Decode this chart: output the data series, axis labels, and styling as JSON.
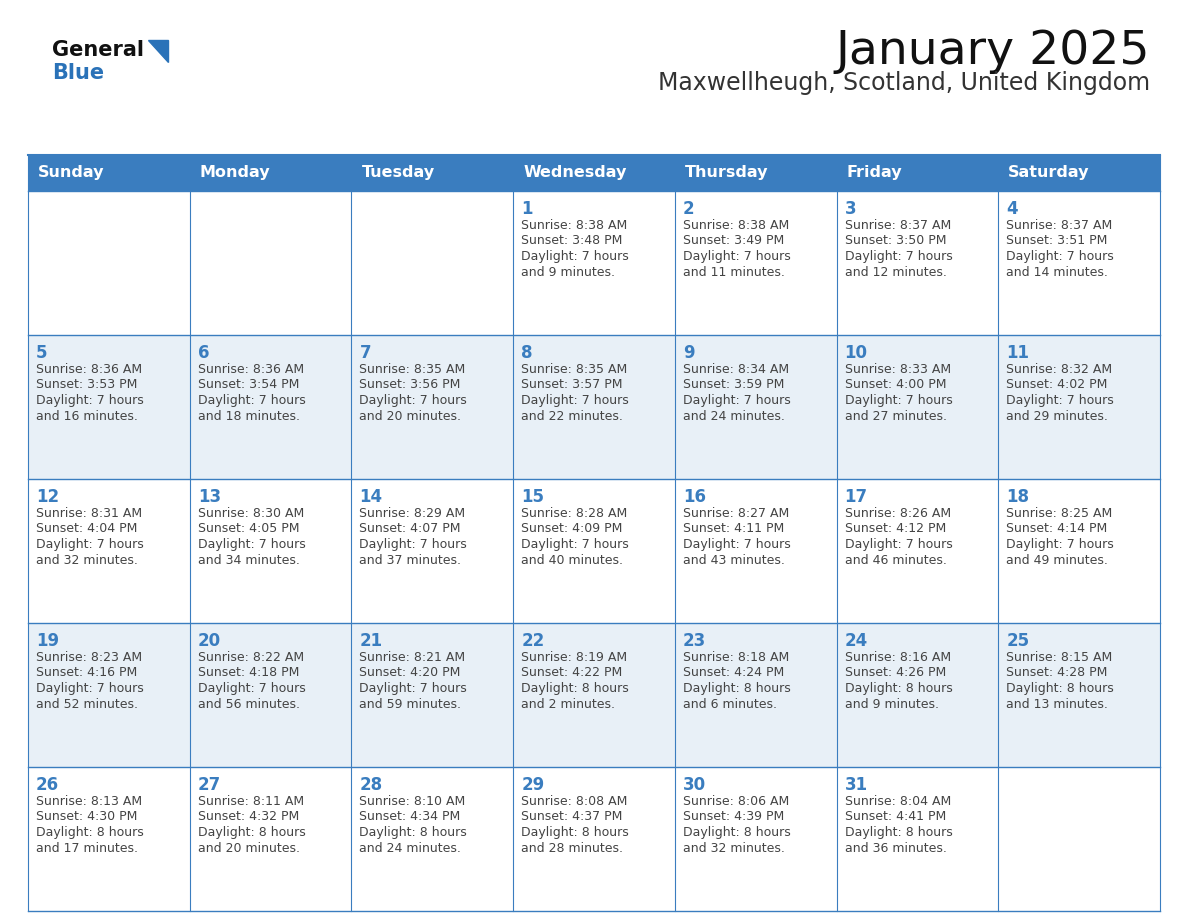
{
  "title": "January 2025",
  "subtitle": "Maxwellheugh, Scotland, United Kingdom",
  "days_of_week": [
    "Sunday",
    "Monday",
    "Tuesday",
    "Wednesday",
    "Thursday",
    "Friday",
    "Saturday"
  ],
  "header_bg": "#3a7dbf",
  "header_text": "#ffffff",
  "cell_bg_light": "#e8f0f7",
  "cell_bg_white": "#ffffff",
  "divider_color": "#3a7dbf",
  "day_num_color": "#3a7dbf",
  "text_color": "#444444",
  "title_color": "#111111",
  "subtitle_color": "#333333",
  "logo_general_color": "#111111",
  "logo_blue_color": "#2a72b8",
  "calendar_data": [
    [
      null,
      null,
      null,
      {
        "day": 1,
        "sunrise": "8:38 AM",
        "sunset": "3:48 PM",
        "daylight": "7 hours and 9 minutes."
      },
      {
        "day": 2,
        "sunrise": "8:38 AM",
        "sunset": "3:49 PM",
        "daylight": "7 hours and 11 minutes."
      },
      {
        "day": 3,
        "sunrise": "8:37 AM",
        "sunset": "3:50 PM",
        "daylight": "7 hours and 12 minutes."
      },
      {
        "day": 4,
        "sunrise": "8:37 AM",
        "sunset": "3:51 PM",
        "daylight": "7 hours and 14 minutes."
      }
    ],
    [
      {
        "day": 5,
        "sunrise": "8:36 AM",
        "sunset": "3:53 PM",
        "daylight": "7 hours and 16 minutes."
      },
      {
        "day": 6,
        "sunrise": "8:36 AM",
        "sunset": "3:54 PM",
        "daylight": "7 hours and 18 minutes."
      },
      {
        "day": 7,
        "sunrise": "8:35 AM",
        "sunset": "3:56 PM",
        "daylight": "7 hours and 20 minutes."
      },
      {
        "day": 8,
        "sunrise": "8:35 AM",
        "sunset": "3:57 PM",
        "daylight": "7 hours and 22 minutes."
      },
      {
        "day": 9,
        "sunrise": "8:34 AM",
        "sunset": "3:59 PM",
        "daylight": "7 hours and 24 minutes."
      },
      {
        "day": 10,
        "sunrise": "8:33 AM",
        "sunset": "4:00 PM",
        "daylight": "7 hours and 27 minutes."
      },
      {
        "day": 11,
        "sunrise": "8:32 AM",
        "sunset": "4:02 PM",
        "daylight": "7 hours and 29 minutes."
      }
    ],
    [
      {
        "day": 12,
        "sunrise": "8:31 AM",
        "sunset": "4:04 PM",
        "daylight": "7 hours and 32 minutes."
      },
      {
        "day": 13,
        "sunrise": "8:30 AM",
        "sunset": "4:05 PM",
        "daylight": "7 hours and 34 minutes."
      },
      {
        "day": 14,
        "sunrise": "8:29 AM",
        "sunset": "4:07 PM",
        "daylight": "7 hours and 37 minutes."
      },
      {
        "day": 15,
        "sunrise": "8:28 AM",
        "sunset": "4:09 PM",
        "daylight": "7 hours and 40 minutes."
      },
      {
        "day": 16,
        "sunrise": "8:27 AM",
        "sunset": "4:11 PM",
        "daylight": "7 hours and 43 minutes."
      },
      {
        "day": 17,
        "sunrise": "8:26 AM",
        "sunset": "4:12 PM",
        "daylight": "7 hours and 46 minutes."
      },
      {
        "day": 18,
        "sunrise": "8:25 AM",
        "sunset": "4:14 PM",
        "daylight": "7 hours and 49 minutes."
      }
    ],
    [
      {
        "day": 19,
        "sunrise": "8:23 AM",
        "sunset": "4:16 PM",
        "daylight": "7 hours and 52 minutes."
      },
      {
        "day": 20,
        "sunrise": "8:22 AM",
        "sunset": "4:18 PM",
        "daylight": "7 hours and 56 minutes."
      },
      {
        "day": 21,
        "sunrise": "8:21 AM",
        "sunset": "4:20 PM",
        "daylight": "7 hours and 59 minutes."
      },
      {
        "day": 22,
        "sunrise": "8:19 AM",
        "sunset": "4:22 PM",
        "daylight": "8 hours and 2 minutes."
      },
      {
        "day": 23,
        "sunrise": "8:18 AM",
        "sunset": "4:24 PM",
        "daylight": "8 hours and 6 minutes."
      },
      {
        "day": 24,
        "sunrise": "8:16 AM",
        "sunset": "4:26 PM",
        "daylight": "8 hours and 9 minutes."
      },
      {
        "day": 25,
        "sunrise": "8:15 AM",
        "sunset": "4:28 PM",
        "daylight": "8 hours and 13 minutes."
      }
    ],
    [
      {
        "day": 26,
        "sunrise": "8:13 AM",
        "sunset": "4:30 PM",
        "daylight": "8 hours and 17 minutes."
      },
      {
        "day": 27,
        "sunrise": "8:11 AM",
        "sunset": "4:32 PM",
        "daylight": "8 hours and 20 minutes."
      },
      {
        "day": 28,
        "sunrise": "8:10 AM",
        "sunset": "4:34 PM",
        "daylight": "8 hours and 24 minutes."
      },
      {
        "day": 29,
        "sunrise": "8:08 AM",
        "sunset": "4:37 PM",
        "daylight": "8 hours and 28 minutes."
      },
      {
        "day": 30,
        "sunrise": "8:06 AM",
        "sunset": "4:39 PM",
        "daylight": "8 hours and 32 minutes."
      },
      {
        "day": 31,
        "sunrise": "8:04 AM",
        "sunset": "4:41 PM",
        "daylight": "8 hours and 36 minutes."
      },
      null
    ]
  ]
}
